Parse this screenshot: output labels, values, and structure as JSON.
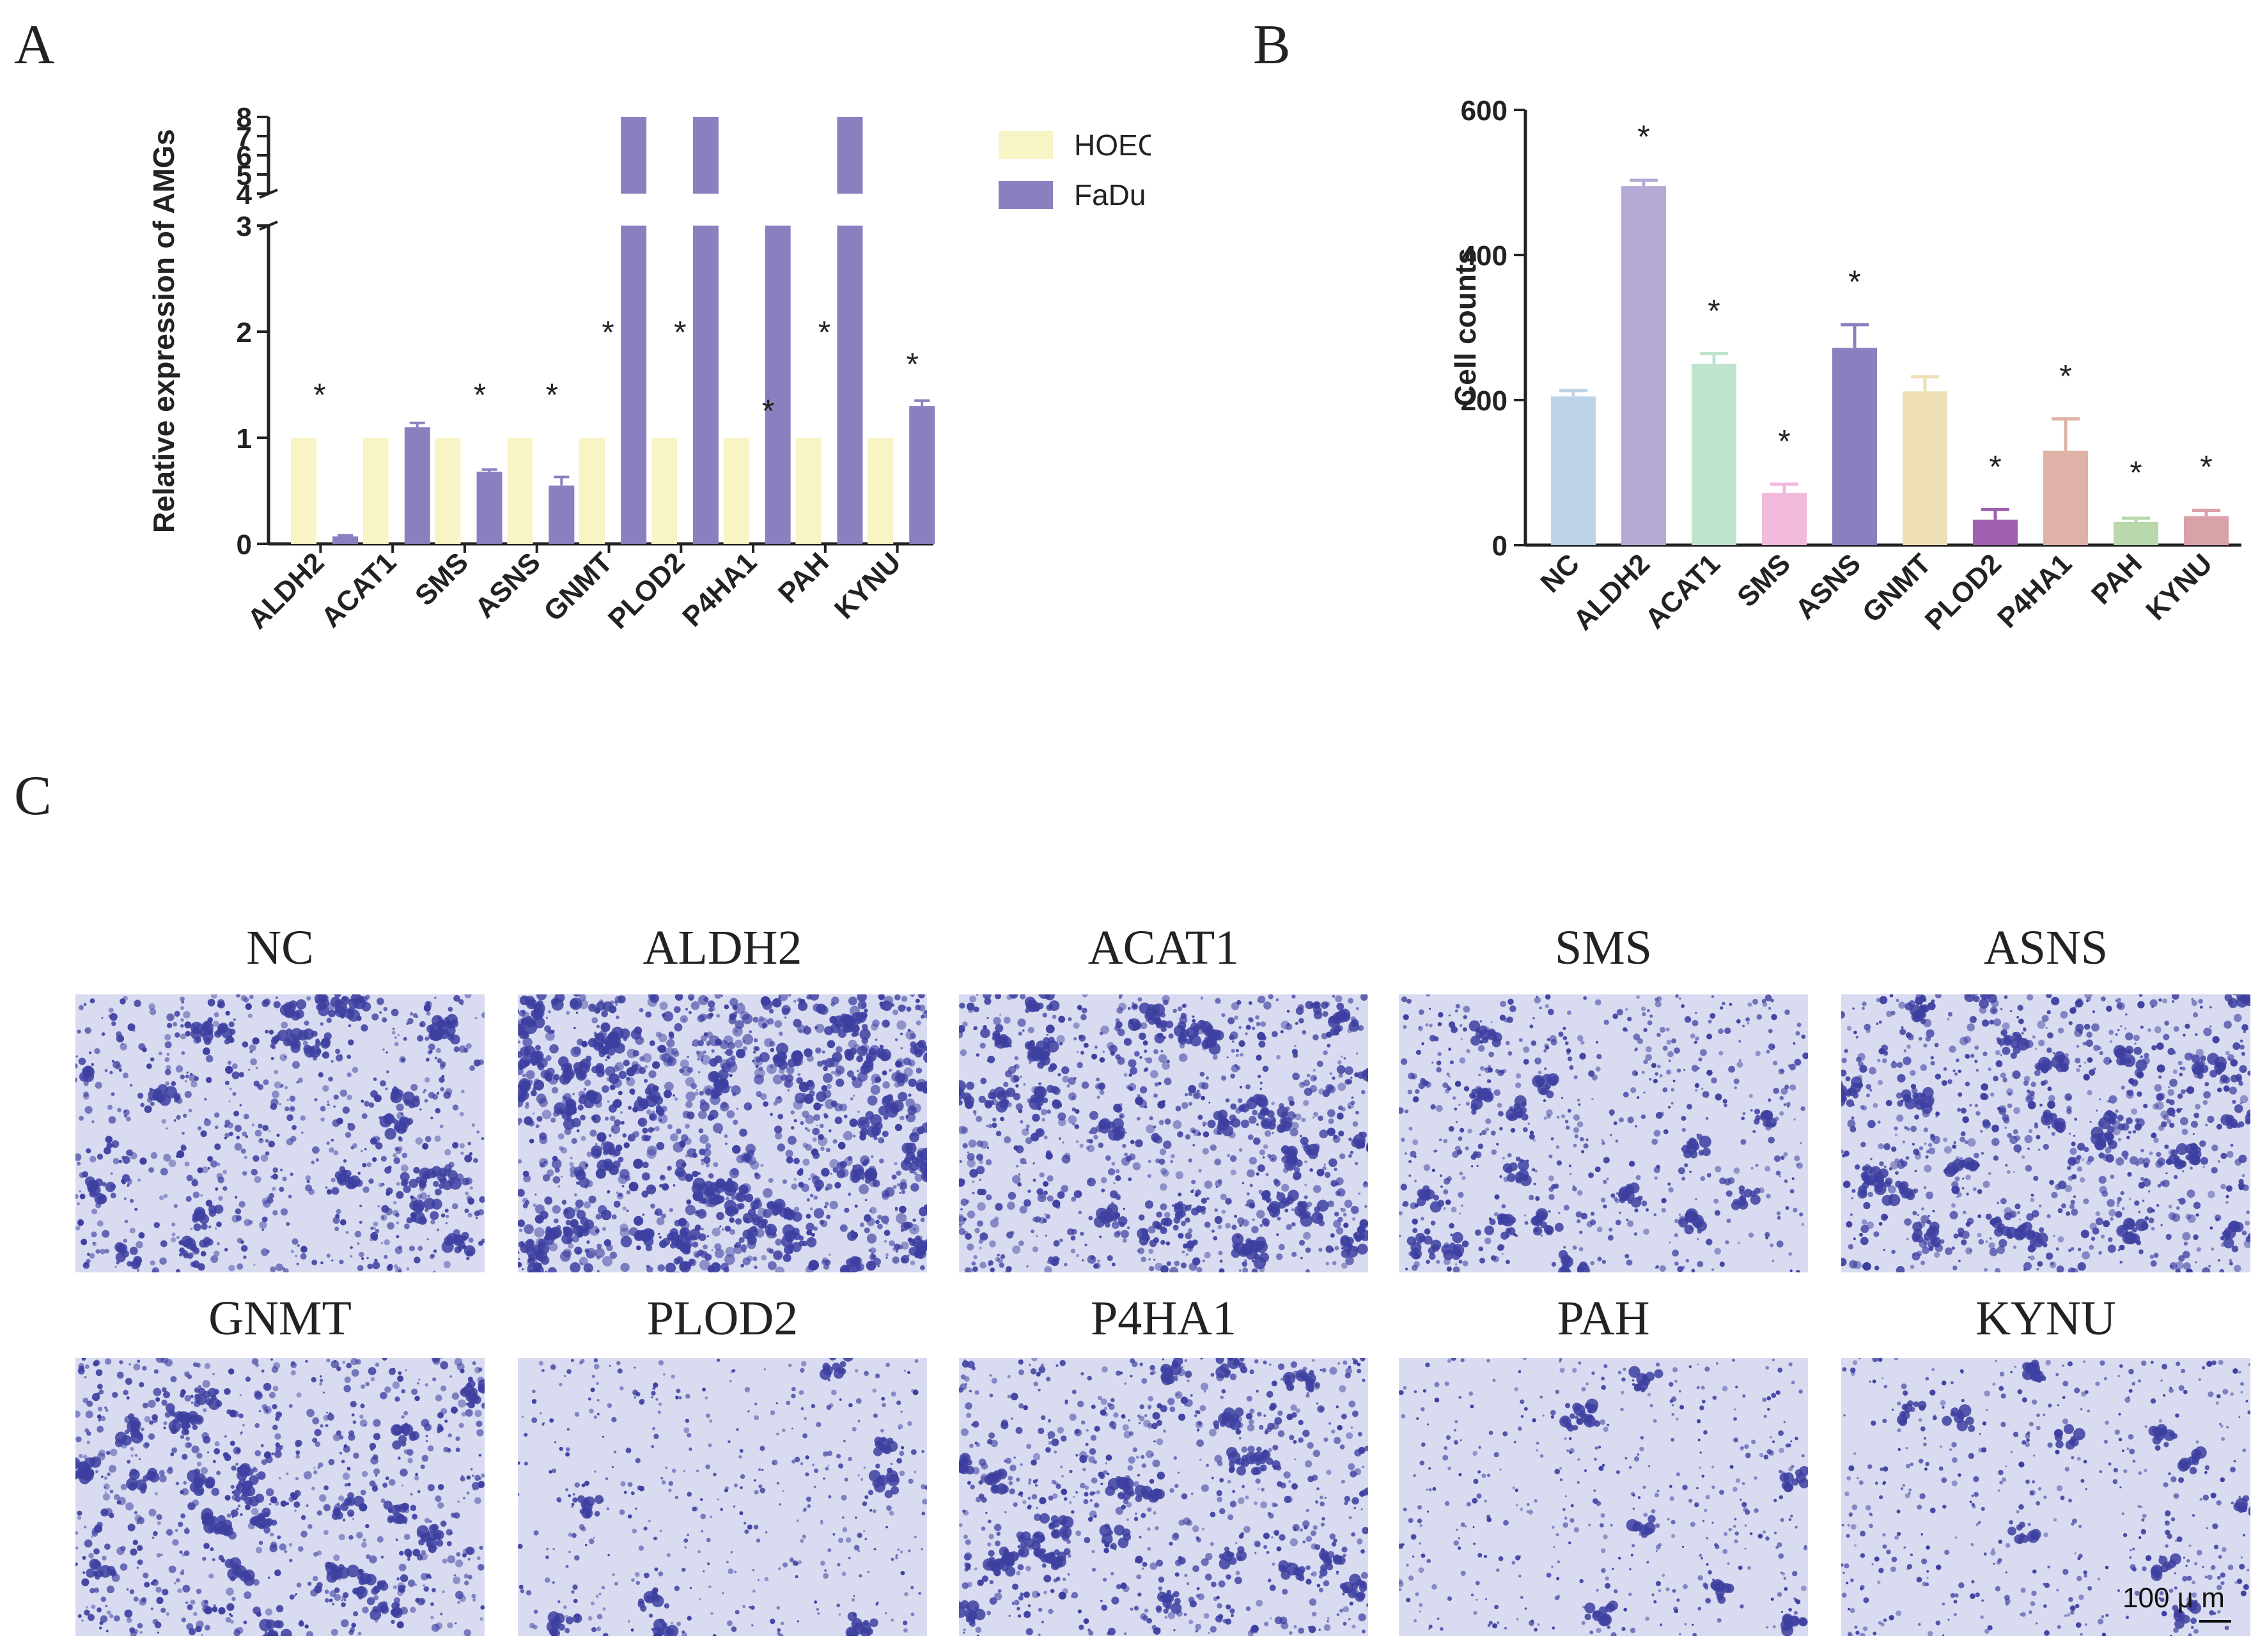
{
  "panels": {
    "a": "A",
    "b": "B",
    "c": "C"
  },
  "chart_data": [
    {
      "panel": "A",
      "type": "bar",
      "ylabel": "Relative expression of AMGs",
      "categories": [
        "ALDH2",
        "ACAT1",
        "SMS",
        "ASNS",
        "GNMT",
        "PLOD2",
        "P4HA1",
        "PAH",
        "KYNU"
      ],
      "series": [
        {
          "name": "HOEC",
          "color": "#f7f5c6",
          "values": [
            1,
            1,
            1,
            1,
            1,
            1,
            1,
            1,
            1
          ]
        },
        {
          "name": "FaDu",
          "color": "#8a80bf",
          "values": [
            0.07,
            1.1,
            0.68,
            0.55,
            8,
            8,
            3,
            8,
            1.3
          ],
          "errors": [
            0.01,
            0.04,
            0.02,
            0.08,
            0,
            0,
            0,
            0,
            0.05
          ]
        }
      ],
      "significant": [
        "*",
        "",
        "*",
        "*",
        "*",
        "*",
        "*",
        "*",
        "*"
      ],
      "y_axis_broken": true,
      "ylim": [
        0,
        8
      ],
      "yticks_lower": [
        "0",
        "1",
        "2",
        "3"
      ],
      "yticks_upper": [
        "4",
        "5",
        "6",
        "7",
        "8"
      ],
      "legend_position": "top-right"
    },
    {
      "panel": "B",
      "type": "bar",
      "ylabel": "Cell counts",
      "categories": [
        "NC",
        "ALDH2",
        "ACAT1",
        "SMS",
        "ASNS",
        "GNMT",
        "PLOD2",
        "P4HA1",
        "PAH",
        "KYNU"
      ],
      "values": [
        205,
        495,
        250,
        72,
        272,
        212,
        35,
        130,
        32,
        40
      ],
      "errors": [
        8,
        8,
        14,
        12,
        32,
        20,
        14,
        44,
        5,
        8
      ],
      "colors": [
        "#bcd3e8",
        "#b5a9d6",
        "#bfe3cd",
        "#f1b9dc",
        "#8a80bf",
        "#eedfb6",
        "#a060b0",
        "#deb2a6",
        "#b9d8ac",
        "#d9a2a8"
      ],
      "significant": [
        "",
        "*",
        "*",
        "*",
        "*",
        "",
        "*",
        "*",
        "*",
        "*"
      ],
      "ylim": [
        0,
        600
      ],
      "yticks": [
        "0",
        "200",
        "400",
        "600"
      ]
    }
  ],
  "micrographs": [
    {
      "label": "NC",
      "density": 0.55
    },
    {
      "label": "ALDH2",
      "density": 1.0
    },
    {
      "label": "ACAT1",
      "density": 0.7
    },
    {
      "label": "SMS",
      "density": 0.4
    },
    {
      "label": "ASNS",
      "density": 0.65
    },
    {
      "label": "GNMT",
      "density": 0.6
    },
    {
      "label": "PLOD2",
      "density": 0.2
    },
    {
      "label": "P4HA1",
      "density": 0.55
    },
    {
      "label": "PAH",
      "density": 0.2
    },
    {
      "label": "KYNU",
      "density": 0.25
    }
  ],
  "scale_bar": "100 μ m",
  "colors": {
    "stain": "#3d3fa0",
    "background": "#d9dcf0"
  }
}
